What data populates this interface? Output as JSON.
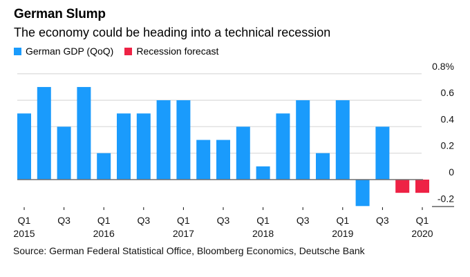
{
  "colors": {
    "gdp": "#1a9bfc",
    "forecast": "#ee2245",
    "grid": "#e1e1e1",
    "axis": "#6e6e6e"
  },
  "chart_data": {
    "type": "bar",
    "title": "German Slump",
    "subtitle": "The economy could be heading into a technical recession",
    "legend": [
      {
        "name": "German GDP (QoQ)",
        "color": "#1a9bfc"
      },
      {
        "name": "Recession forecast",
        "color": "#ee2245"
      }
    ],
    "legend_position": "top-left",
    "categories": [
      "Q1 2015",
      "Q2 2015",
      "Q3 2015",
      "Q4 2015",
      "Q1 2016",
      "Q2 2016",
      "Q3 2016",
      "Q4 2016",
      "Q1 2017",
      "Q2 2017",
      "Q3 2017",
      "Q4 2017",
      "Q1 2018",
      "Q2 2018",
      "Q3 2018",
      "Q4 2018",
      "Q1 2019",
      "Q2 2019",
      "Q3 2019",
      "Q4 2019",
      "Q1 2020"
    ],
    "series": [
      {
        "name": "German GDP (QoQ)",
        "values": [
          0.5,
          0.7,
          0.4,
          0.7,
          0.2,
          0.5,
          0.5,
          0.6,
          0.6,
          0.3,
          0.3,
          0.4,
          0.1,
          0.5,
          0.6,
          0.2,
          0.6,
          -0.2,
          0.4,
          null,
          null
        ]
      },
      {
        "name": "Recession forecast",
        "values": [
          null,
          null,
          null,
          null,
          null,
          null,
          null,
          null,
          null,
          null,
          null,
          null,
          null,
          null,
          null,
          null,
          null,
          null,
          null,
          -0.1,
          -0.1
        ]
      }
    ],
    "x_ticks": [
      {
        "index": 0,
        "line1": "Q1",
        "line2": "2015"
      },
      {
        "index": 2,
        "line1": "Q3",
        "line2": ""
      },
      {
        "index": 4,
        "line1": "Q1",
        "line2": "2016"
      },
      {
        "index": 6,
        "line1": "Q3",
        "line2": ""
      },
      {
        "index": 8,
        "line1": "Q1",
        "line2": "2017"
      },
      {
        "index": 10,
        "line1": "Q3",
        "line2": ""
      },
      {
        "index": 12,
        "line1": "Q1",
        "line2": "2018"
      },
      {
        "index": 14,
        "line1": "Q3",
        "line2": ""
      },
      {
        "index": 16,
        "line1": "Q1",
        "line2": "2019"
      },
      {
        "index": 18,
        "line1": "Q3",
        "line2": ""
      },
      {
        "index": 20,
        "line1": "Q1",
        "line2": "2020"
      }
    ],
    "y_ticks": [
      {
        "value": 0.8,
        "label": "0.8%"
      },
      {
        "value": 0.6,
        "label": "0.6"
      },
      {
        "value": 0.4,
        "label": "0.4"
      },
      {
        "value": 0.2,
        "label": "0.2"
      },
      {
        "value": 0,
        "label": "0"
      },
      {
        "value": -0.2,
        "label": "-0.2"
      }
    ],
    "ylim": [
      -0.2,
      0.8
    ],
    "y_axis_side": "right",
    "grid": true,
    "xlabel": "",
    "ylabel": ""
  },
  "source": "Source: German Federal Statistical Office, Bloomberg Economics, Deutsche Bank"
}
